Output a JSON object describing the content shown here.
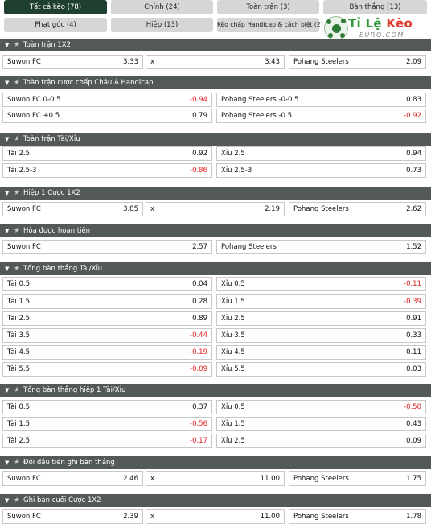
{
  "tabs": [
    {
      "label": "Tất cả kèo (78)",
      "active": true
    },
    {
      "label": "Chính (24)",
      "active": false
    },
    {
      "label": "Toàn trận (3)",
      "active": false
    },
    {
      "label": "Bàn thắng (13)",
      "active": false
    },
    {
      "label": "Phạt góc (4)",
      "active": false
    },
    {
      "label": "Hiệp (13)",
      "active": false
    },
    {
      "label": "Kèo chấp Handicap & cách biệt (2)",
      "active": false
    }
  ],
  "logo": {
    "part1": "Tỉ Lệ",
    "part2": "Kèo",
    "sub": "EURO.COM"
  },
  "icons": {
    "collapse": "chevron-down-icon",
    "favorite": "star-icon"
  },
  "colors": {
    "header_bg": "#535a56",
    "active_tab": "#20402f",
    "negative": "#e02020"
  },
  "sections": [
    {
      "title": "Toàn trận 1X2",
      "type": "three",
      "rows": [
        [
          {
            "label": "Suwon FC",
            "value": "3.33"
          },
          {
            "label": "x",
            "value": "3.43"
          },
          {
            "label": "Pohang Steelers",
            "value": "2.09"
          }
        ]
      ]
    },
    {
      "title": "Toàn trận cược chấp Châu Á Handicap",
      "type": "two",
      "rows": [
        [
          {
            "label": "Suwon FC 0-0.5",
            "value": "-0.94"
          },
          {
            "label": "Pohang Steelers -0-0.5",
            "value": "0.83"
          }
        ],
        [
          {
            "label": "Suwon FC +0.5",
            "value": "0.79"
          },
          {
            "label": "Pohang Steelers -0.5",
            "value": "-0.92"
          }
        ]
      ]
    },
    {
      "title": "Toàn trận Tài/Xỉu",
      "type": "two",
      "rows": [
        [
          {
            "label": "Tài 2.5",
            "value": "0.92"
          },
          {
            "label": "Xỉu 2.5",
            "value": "0.94"
          }
        ],
        [
          {
            "label": "Tài 2.5-3",
            "value": "-0.86"
          },
          {
            "label": "Xỉu 2.5-3",
            "value": "0.73"
          }
        ]
      ]
    },
    {
      "title": "Hiệp 1 Cược 1X2",
      "type": "three",
      "rows": [
        [
          {
            "label": "Suwon FC",
            "value": "3.85"
          },
          {
            "label": "x",
            "value": "2.19"
          },
          {
            "label": "Pohang Steelers",
            "value": "2.62"
          }
        ]
      ]
    },
    {
      "title": "Hòa được hoàn tiền",
      "type": "two",
      "rows": [
        [
          {
            "label": "Suwon FC",
            "value": "2.57"
          },
          {
            "label": "Pohang Steelers",
            "value": "1.52"
          }
        ]
      ]
    },
    {
      "title": "Tổng bàn thắng Tài/Xỉu",
      "type": "two",
      "rows": [
        [
          {
            "label": "Tài 0.5",
            "value": "0.04"
          },
          {
            "label": "Xỉu 0.5",
            "value": "-0.11"
          }
        ],
        [
          {
            "label": "Tài 1.5",
            "value": "0.28"
          },
          {
            "label": "Xỉu 1.5",
            "value": "-0.39"
          }
        ],
        [
          {
            "label": "Tài 2.5",
            "value": "0.89"
          },
          {
            "label": "Xỉu 2.5",
            "value": "0.91"
          }
        ],
        [
          {
            "label": "Tài 3.5",
            "value": "-0.44"
          },
          {
            "label": "Xỉu 3.5",
            "value": "0.33"
          }
        ],
        [
          {
            "label": "Tài 4.5",
            "value": "-0.19"
          },
          {
            "label": "Xỉu 4.5",
            "value": "0.11"
          }
        ],
        [
          {
            "label": "Tài 5.5",
            "value": "-0.09"
          },
          {
            "label": "Xỉu 5.5",
            "value": "0.03"
          }
        ]
      ]
    },
    {
      "title": "Tổng bàn thắng hiệp 1 Tài/Xỉu",
      "type": "two",
      "rows": [
        [
          {
            "label": "Tài 0.5",
            "value": "0.37"
          },
          {
            "label": "Xỉu 0.5",
            "value": "-0.50"
          }
        ],
        [
          {
            "label": "Tài 1.5",
            "value": "-0.56"
          },
          {
            "label": "Xỉu 1.5",
            "value": "0.43"
          }
        ],
        [
          {
            "label": "Tài 2.5",
            "value": "-0.17"
          },
          {
            "label": "Xỉu 2.5",
            "value": "0.09"
          }
        ]
      ]
    },
    {
      "title": "Đội đầu tiên ghi bàn thắng",
      "type": "three",
      "rows": [
        [
          {
            "label": "Suwon FC",
            "value": "2.46"
          },
          {
            "label": "x",
            "value": "11.00"
          },
          {
            "label": "Pohang Steelers",
            "value": "1.75"
          }
        ]
      ]
    },
    {
      "title": "Ghi bàn cuối Cược 1X2",
      "type": "three",
      "rows": [
        [
          {
            "label": "Suwon FC",
            "value": "2.39"
          },
          {
            "label": "x",
            "value": "11.00"
          },
          {
            "label": "Pohang Steelers",
            "value": "1.78"
          }
        ]
      ]
    }
  ]
}
